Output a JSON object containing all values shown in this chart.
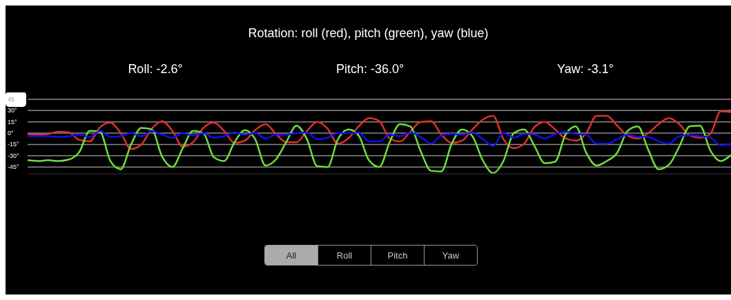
{
  "chart_data": {
    "type": "line",
    "title": "Rotation: roll (red), pitch (green), yaw (blue)",
    "annotations": [
      "Roll: -2.6°",
      "Pitch: -36.0°",
      "Yaw: -3.1°",
      "All",
      "Roll",
      "Pitch",
      "Yaw"
    ],
    "categories": [
      null,
      null,
      null,
      null,
      null,
      null,
      null,
      null,
      null,
      null,
      null,
      null,
      null,
      null,
      null,
      null,
      null,
      null,
      null,
      null,
      null,
      null,
      null,
      null,
      null,
      null,
      null,
      null,
      null,
      null,
      null,
      null,
      null,
      null,
      null,
      null,
      null,
      null,
      null,
      null,
      null,
      null,
      null,
      null,
      null,
      null,
      null,
      null,
      null,
      null,
      null,
      null,
      null,
      null,
      null,
      null,
      null,
      null,
      null,
      null,
      null,
      null,
      null,
      null,
      null,
      null,
      null,
      null,
      null
    ],
    "series": [
      {
        "color": "#e0302a",
        "values": [
          -1,
          -2,
          -1,
          2,
          1,
          -9,
          -11,
          8,
          14,
          0,
          -21,
          -15,
          6,
          16,
          3,
          -18,
          -12,
          7,
          14,
          3,
          -13,
          -10,
          4,
          12,
          -1,
          -12,
          -12,
          3,
          15,
          6,
          -14,
          -7,
          9,
          20,
          16,
          -7,
          -11,
          2,
          15,
          16,
          -2,
          -13,
          -10,
          5,
          18,
          23,
          -8,
          -20,
          -14,
          8,
          15,
          5,
          -7,
          -10,
          0,
          23,
          23,
          10,
          -3,
          -7,
          0,
          12,
          20,
          12,
          -3,
          -6,
          -1,
          29,
          28
        ]
      },
      {
        "color": "#6fe03a",
        "values": [
          -36,
          -37,
          -36,
          -37,
          -35,
          -25,
          3,
          2,
          -37,
          -48,
          -15,
          7,
          5,
          -31,
          -45,
          -20,
          3,
          0,
          -32,
          -37,
          -12,
          4,
          -8,
          -43,
          -35,
          -12,
          10,
          -8,
          -44,
          -45,
          -8,
          5,
          -3,
          -36,
          -45,
          -12,
          12,
          9,
          -24,
          -50,
          -51,
          -14,
          5,
          -4,
          -36,
          -53,
          -37,
          0,
          5,
          -17,
          -40,
          -38,
          -2,
          9,
          -26,
          -43,
          -37,
          -26,
          3,
          9,
          -22,
          -48,
          -42,
          -18,
          9,
          10,
          -23,
          -37,
          -29
        ]
      },
      {
        "color": "#1010f0",
        "values": [
          -4,
          -4,
          -4,
          -5,
          -4,
          -2,
          -5,
          3,
          -5,
          -4,
          0,
          -4,
          3,
          -2,
          -6,
          0,
          -3,
          0,
          -6,
          -4,
          1,
          -2,
          0,
          -7,
          -2,
          -2,
          0,
          1,
          -8,
          -6,
          0,
          0,
          1,
          -11,
          -11,
          -2,
          -4,
          1,
          -5,
          -14,
          -3,
          -1,
          -2,
          1,
          -8,
          -17,
          0,
          -6,
          -1,
          -2,
          -7,
          -1,
          2,
          -1,
          -2,
          -14,
          -14,
          -8,
          -2,
          -5,
          -5,
          -11,
          -14,
          -4,
          -3,
          -4,
          -6,
          -16,
          -14
        ]
      }
    ],
    "ylim": [
      -54,
      45
    ],
    "yticks": [
      {
        "value": 45,
        "label": "45"
      },
      {
        "value": 30,
        "label": "30°"
      },
      {
        "value": 15,
        "label": "15°"
      },
      {
        "value": 0,
        "label": "0°"
      },
      {
        "value": -15,
        "label": "-15°"
      },
      {
        "value": -30,
        "label": "-30°"
      },
      {
        "value": -45,
        "label": "-45°"
      }
    ],
    "grid": "y"
  }
}
